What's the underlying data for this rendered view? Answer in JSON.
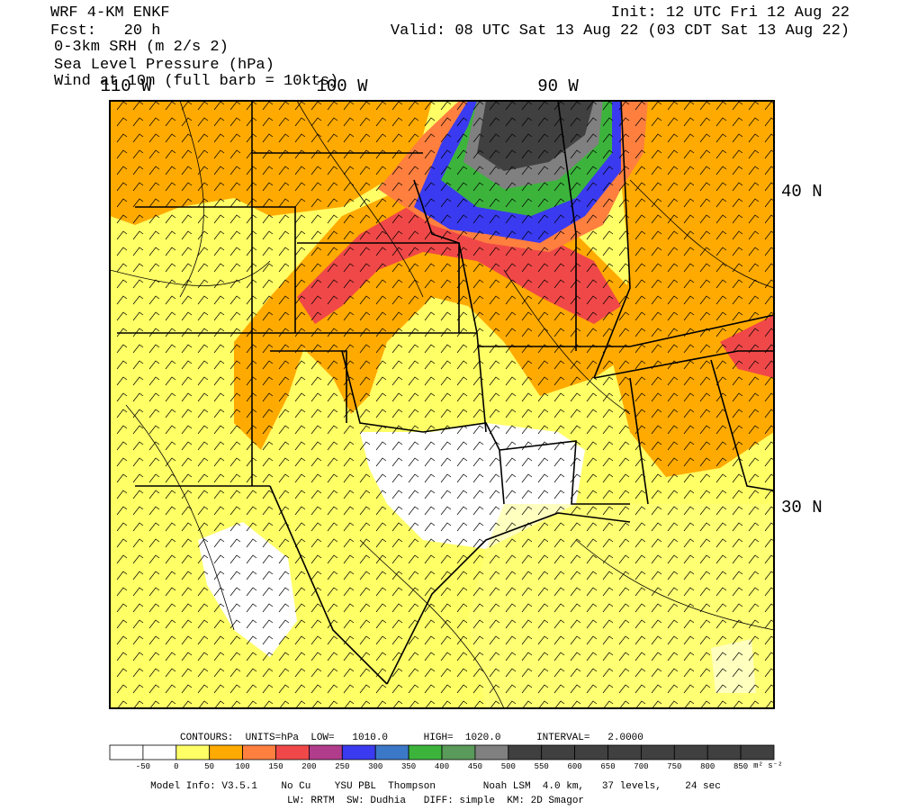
{
  "header": {
    "model": "WRF 4-KM ENKF",
    "forecast": "Fcst:   20 h",
    "init": "Init: 12 UTC Fri 12 Aug 22",
    "valid": "Valid: 08 UTC Sat 13 Aug 22 (03 CDT Sat 13 Aug 22)",
    "fields": [
      "0-3km SRH (m 2/s 2)",
      "Sea Level Pressure (hPa)",
      "Wind at 10m (full barb = 10kts)"
    ]
  },
  "map": {
    "longitudes": [
      "110 W",
      "100 W",
      "90 W"
    ],
    "latitudes": [
      "40 N",
      "30 N"
    ]
  },
  "contours": "CONTOURS:  UNITS=hPa  LOW=   1010.0      HIGH=  1020.0      INTERVAL=   2.0000",
  "colorbar": {
    "colors": [
      "#ffffff",
      "#ffffff",
      "#ffff66",
      "#ffaa00",
      "#ff7f3f",
      "#f04848",
      "#b23c8c",
      "#3a3af0",
      "#3c78c8",
      "#3cb43c",
      "#5a9a5a",
      "#808080",
      "#404040",
      "#404040",
      "#404040",
      "#404040",
      "#404040",
      "#404040",
      "#404040",
      "#404040"
    ],
    "labels": [
      "-50",
      "0",
      "50",
      "100",
      "150",
      "200",
      "250",
      "300",
      "350",
      "400",
      "450",
      "500",
      "550",
      "600",
      "650",
      "700",
      "750",
      "800",
      "850"
    ],
    "units": "m² s⁻²"
  },
  "footer": [
    "Model Info: V3.5.1    No Cu    YSU PBL  Thompson        Noah LSM  4.0 km,   37 levels,    24 sec",
    "LW: RRTM  SW: Dudhia   DIFF: simple  KM: 2D Smagor"
  ]
}
